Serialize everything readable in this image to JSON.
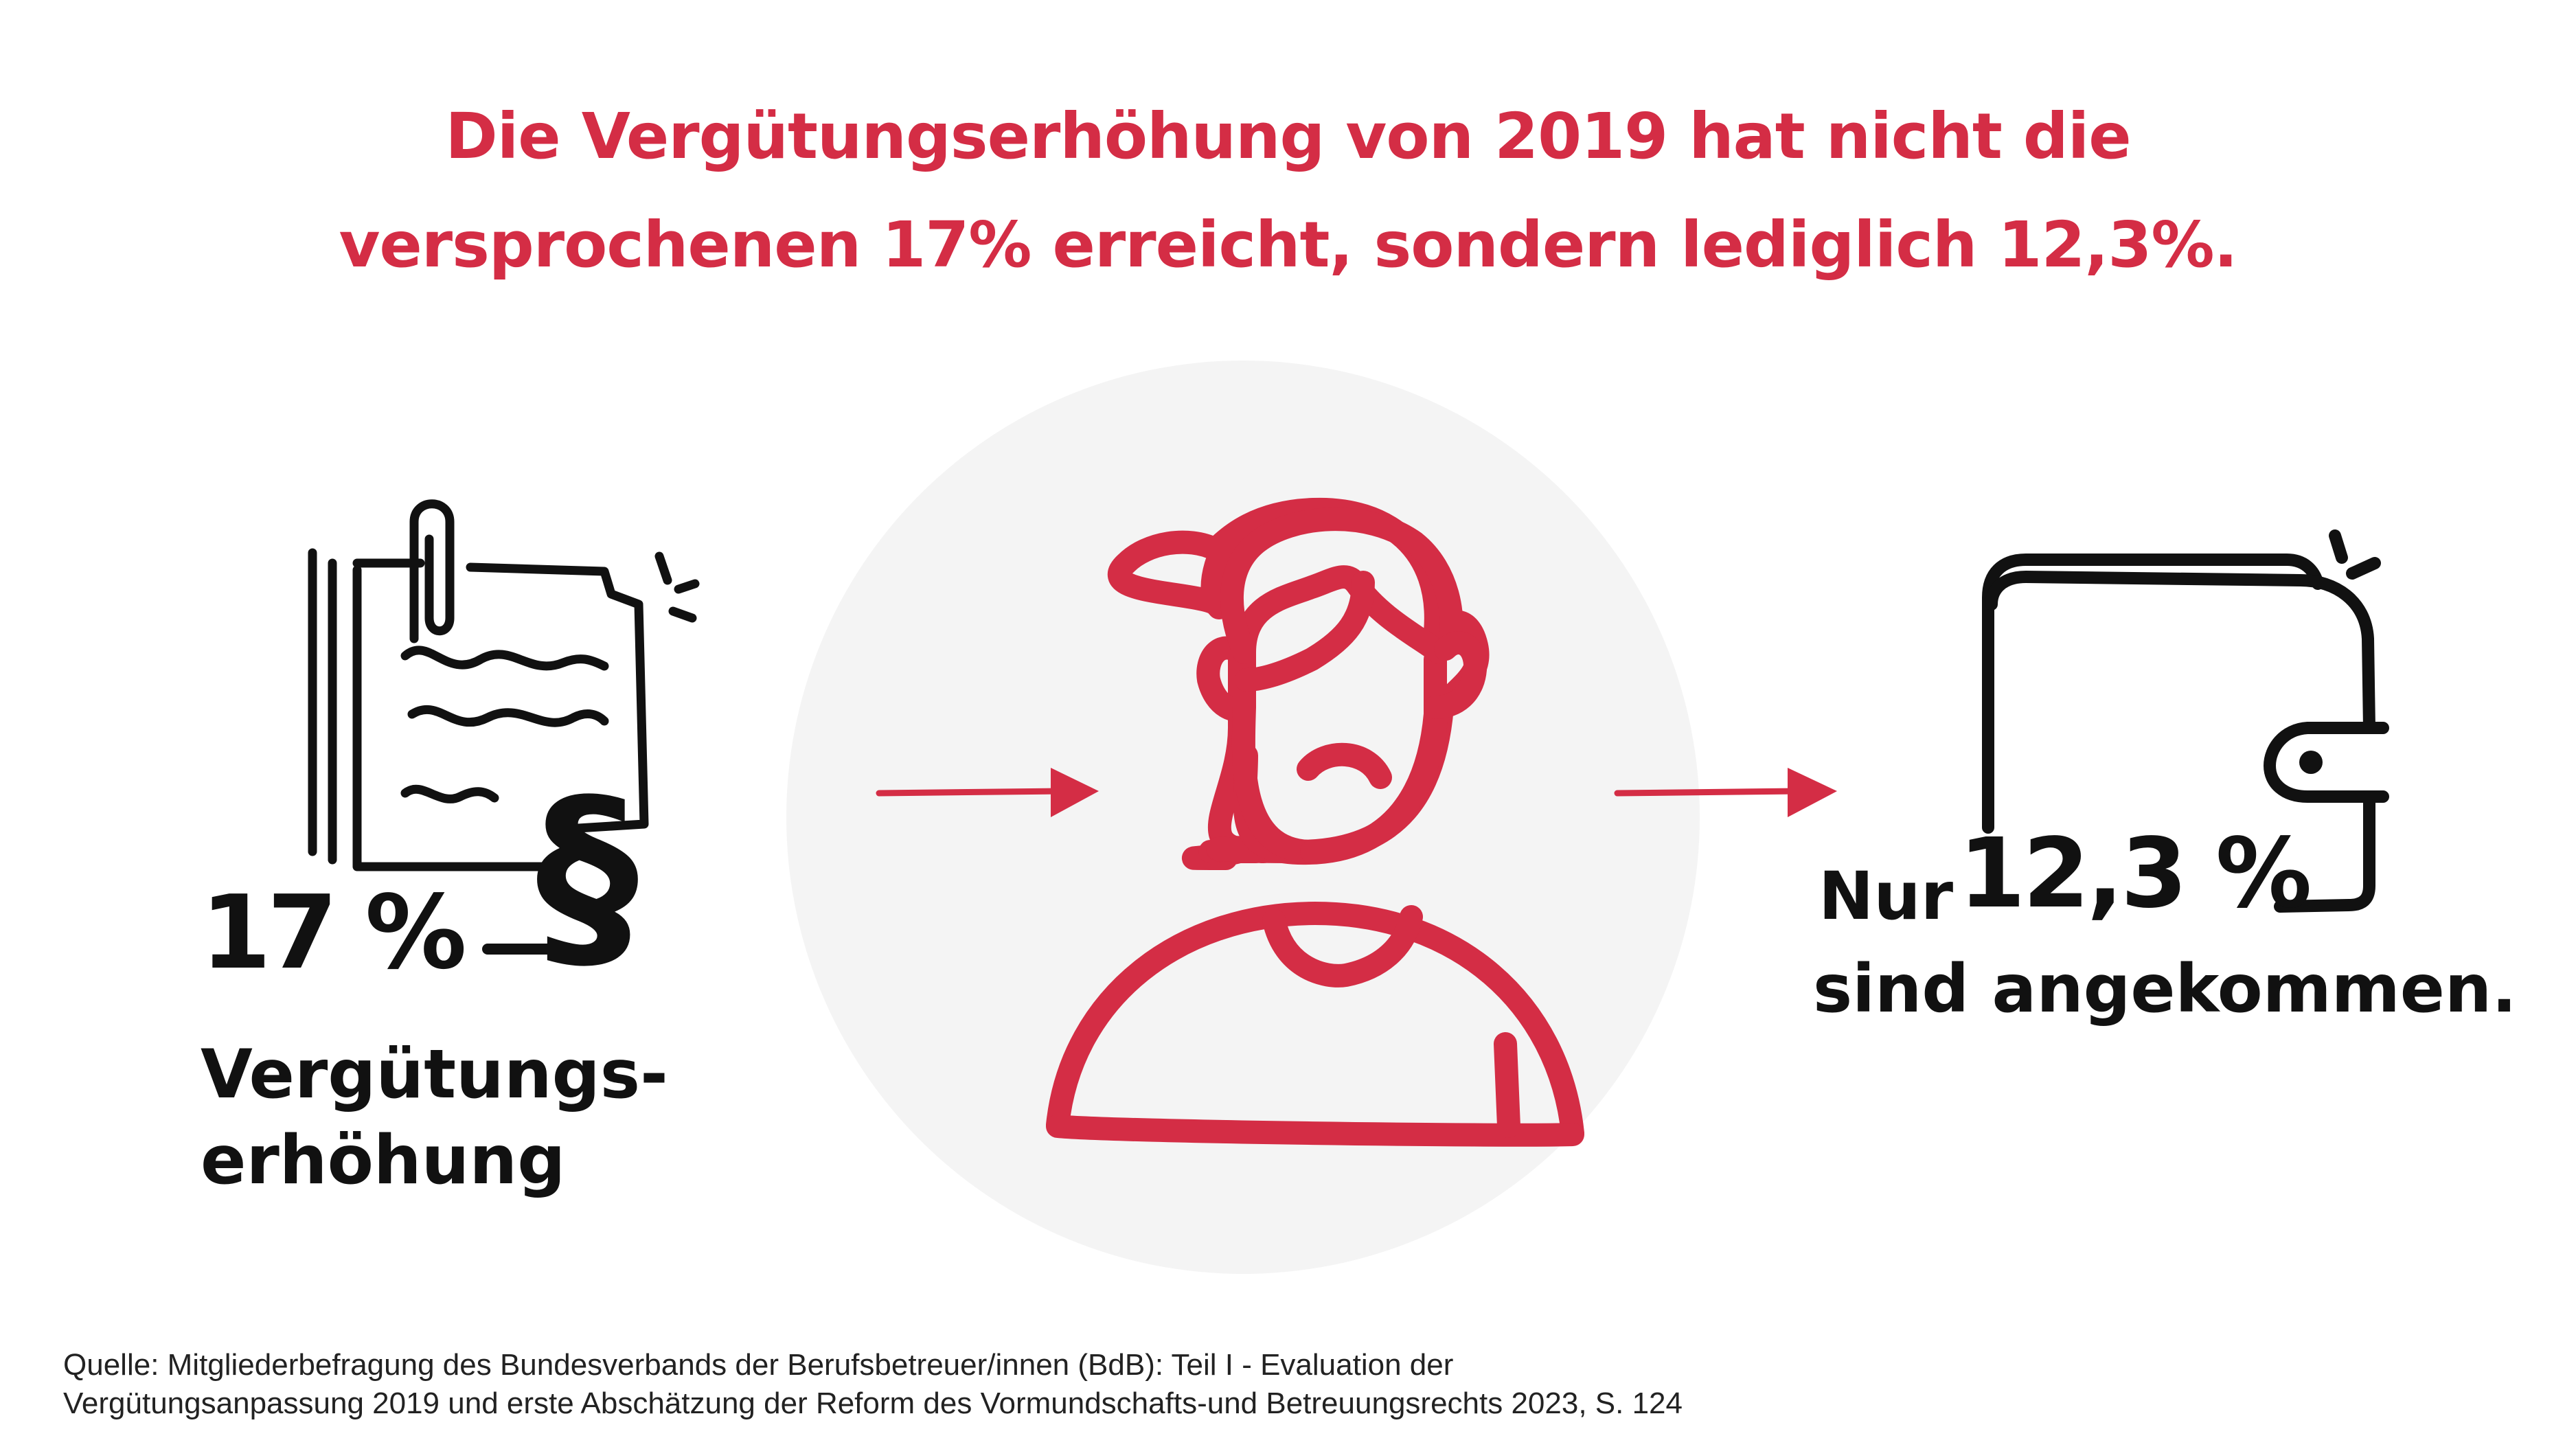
{
  "title": {
    "line1": "Die Vergütungserhöhung von 2019 hat nicht die",
    "line2": "versprochenen 17% erreicht, sondern lediglich 12,3%."
  },
  "left": {
    "value": "17 %",
    "symbol": "§",
    "label_line1": "Vergütungs-",
    "label_line2": "erhöhung"
  },
  "right": {
    "prefix": "Nur",
    "value": "12,3 %",
    "label": "sind angekommen."
  },
  "source": {
    "line1": "Quelle: Mitgliederbefragung des Bundesverbands der Berufsbetreuer/innen (BdB): Teil I - Evaluation der",
    "line2": "Vergütungsanpassung 2019 und erste Abschätzung der Reform des Vormundschafts-und Betreuungsrechts 2023, S. 124"
  },
  "colors": {
    "accent": "#d42d45",
    "ink": "#111111",
    "circle": "#f4f4f4"
  },
  "icons": {
    "left": "document-paragraph-icon",
    "center": "sad-person-icon",
    "right": "wallet-icon",
    "arrows": "arrow-right-icon"
  }
}
